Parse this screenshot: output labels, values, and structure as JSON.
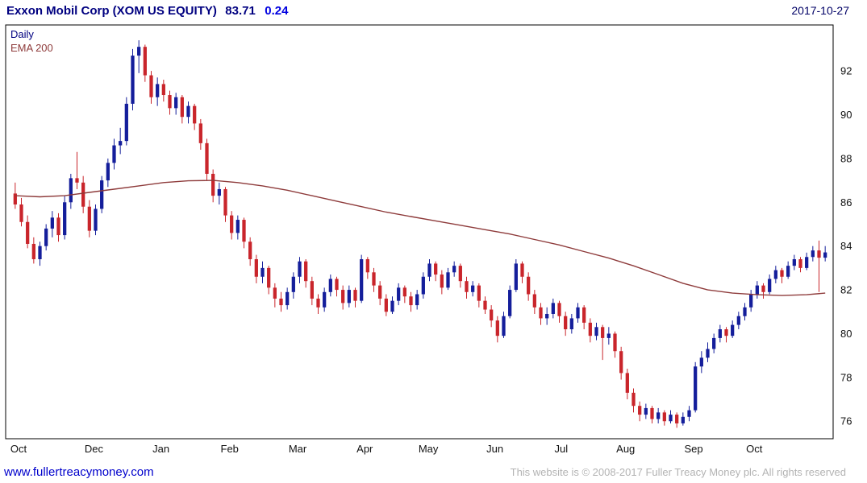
{
  "header": {
    "title": "Exxon Mobil Corp (XOM US EQUITY)",
    "price": "83.71",
    "change": "0.24",
    "date": "2017-10-27"
  },
  "legend": {
    "timeframe": "Daily",
    "overlay": "EMA 200"
  },
  "footer": {
    "website": "www.fullertreacymoney.com",
    "copyright": "This website is © 2008-2017 Fuller Treacy Money plc. All rights reserved"
  },
  "colors": {
    "up": "#141e9b",
    "down": "#c9252b",
    "ema": "#8e3b3b",
    "title": "#000080",
    "change": "#0000e0",
    "legend_daily": "#000080",
    "legend_ema": "#8e3b3b",
    "axis_text": "#111111",
    "border": "#000000",
    "link": "#0000cc",
    "copyright": "#b3b3b3"
  },
  "chart_data": {
    "type": "candlestick",
    "title": "Exxon Mobil Corp (XOM US EQUITY)",
    "timeframe": "Daily",
    "overlay": "EMA 200",
    "last_price": 83.71,
    "change": 0.24,
    "as_of_date": "2017-10-27",
    "ylim": [
      75.2,
      94.1
    ],
    "y_ticks": [
      76,
      78,
      80,
      82,
      84,
      86,
      88,
      90,
      92
    ],
    "x_labels": [
      {
        "label": "Oct",
        "i": 0
      },
      {
        "label": "Dec",
        "i": 12
      },
      {
        "label": "Jan",
        "i": 23
      },
      {
        "label": "Feb",
        "i": 34
      },
      {
        "label": "Mar",
        "i": 45
      },
      {
        "label": "Apr",
        "i": 56
      },
      {
        "label": "May",
        "i": 66
      },
      {
        "label": "Jun",
        "i": 77
      },
      {
        "label": "Jul",
        "i": 88
      },
      {
        "label": "Aug",
        "i": 98
      },
      {
        "label": "Sep",
        "i": 109
      },
      {
        "label": "Oct",
        "i": 119
      }
    ],
    "candles": [
      [
        86.4,
        86.9,
        85.7,
        85.9
      ],
      [
        85.9,
        86.2,
        84.9,
        85.1
      ],
      [
        85.1,
        85.4,
        83.9,
        84.1
      ],
      [
        84.1,
        84.4,
        83.2,
        83.4
      ],
      [
        83.4,
        84.2,
        83.1,
        84.0
      ],
      [
        84.0,
        85.0,
        83.8,
        84.8
      ],
      [
        84.8,
        85.6,
        84.4,
        85.3
      ],
      [
        85.3,
        85.5,
        84.2,
        84.5
      ],
      [
        84.5,
        86.3,
        84.3,
        86.0
      ],
      [
        86.0,
        87.3,
        85.7,
        87.1
      ],
      [
        87.1,
        88.3,
        86.6,
        86.9
      ],
      [
        86.9,
        87.2,
        85.5,
        85.8
      ],
      [
        85.8,
        86.1,
        84.4,
        84.7
      ],
      [
        84.7,
        85.9,
        84.5,
        85.7
      ],
      [
        85.7,
        87.2,
        85.5,
        87.0
      ],
      [
        87.0,
        88.0,
        86.7,
        87.8
      ],
      [
        87.8,
        88.9,
        87.5,
        88.6
      ],
      [
        88.6,
        89.4,
        88.2,
        88.8
      ],
      [
        88.8,
        90.8,
        88.6,
        90.5
      ],
      [
        90.5,
        93.0,
        90.2,
        92.7
      ],
      [
        92.7,
        93.4,
        91.9,
        93.1
      ],
      [
        93.1,
        93.2,
        91.5,
        91.8
      ],
      [
        91.8,
        92.0,
        90.5,
        90.8
      ],
      [
        90.8,
        91.7,
        90.4,
        91.4
      ],
      [
        91.4,
        91.6,
        90.6,
        90.9
      ],
      [
        90.9,
        91.1,
        90.0,
        90.3
      ],
      [
        90.3,
        91.0,
        90.0,
        90.8
      ],
      [
        90.8,
        90.9,
        89.6,
        89.9
      ],
      [
        89.9,
        90.6,
        89.6,
        90.4
      ],
      [
        90.4,
        90.5,
        89.3,
        89.6
      ],
      [
        89.6,
        89.8,
        88.4,
        88.7
      ],
      [
        88.7,
        88.9,
        87.0,
        87.3
      ],
      [
        87.3,
        87.5,
        86.0,
        86.3
      ],
      [
        86.3,
        86.9,
        85.9,
        86.6
      ],
      [
        86.6,
        86.7,
        85.1,
        85.4
      ],
      [
        85.4,
        85.6,
        84.3,
        84.6
      ],
      [
        84.6,
        85.4,
        84.3,
        85.2
      ],
      [
        85.2,
        85.3,
        83.9,
        84.2
      ],
      [
        84.2,
        84.4,
        83.1,
        83.4
      ],
      [
        83.4,
        83.6,
        82.3,
        82.6
      ],
      [
        82.6,
        83.3,
        82.3,
        83.0
      ],
      [
        83.0,
        83.1,
        81.8,
        82.1
      ],
      [
        82.1,
        82.3,
        81.2,
        81.6
      ],
      [
        81.6,
        81.9,
        81.0,
        81.3
      ],
      [
        81.3,
        82.1,
        81.1,
        81.9
      ],
      [
        81.9,
        82.8,
        81.6,
        82.6
      ],
      [
        82.6,
        83.5,
        82.3,
        83.3
      ],
      [
        83.3,
        83.4,
        82.1,
        82.4
      ],
      [
        82.4,
        82.6,
        81.3,
        81.6
      ],
      [
        81.6,
        81.8,
        80.9,
        81.2
      ],
      [
        81.2,
        82.1,
        81.0,
        81.9
      ],
      [
        81.9,
        82.7,
        81.7,
        82.5
      ],
      [
        82.5,
        82.6,
        81.7,
        82.0
      ],
      [
        82.0,
        82.2,
        81.1,
        81.4
      ],
      [
        81.4,
        82.2,
        81.2,
        82.0
      ],
      [
        82.0,
        82.1,
        81.2,
        81.5
      ],
      [
        81.5,
        83.6,
        81.4,
        83.4
      ],
      [
        83.4,
        83.5,
        82.5,
        82.8
      ],
      [
        82.8,
        83.0,
        81.9,
        82.2
      ],
      [
        82.2,
        82.4,
        81.3,
        81.6
      ],
      [
        81.6,
        81.8,
        80.8,
        81.0
      ],
      [
        81.0,
        81.7,
        80.9,
        81.5
      ],
      [
        81.5,
        82.3,
        81.3,
        82.1
      ],
      [
        82.1,
        82.2,
        81.4,
        81.7
      ],
      [
        81.7,
        81.9,
        81.0,
        81.3
      ],
      [
        81.3,
        82.0,
        81.1,
        81.8
      ],
      [
        81.8,
        82.8,
        81.6,
        82.6
      ],
      [
        82.6,
        83.4,
        82.4,
        83.2
      ],
      [
        83.2,
        83.3,
        82.4,
        82.7
      ],
      [
        82.7,
        82.9,
        81.8,
        82.1
      ],
      [
        82.1,
        83.0,
        82.0,
        82.8
      ],
      [
        82.8,
        83.3,
        82.6,
        83.1
      ],
      [
        83.1,
        83.2,
        82.1,
        82.4
      ],
      [
        82.4,
        82.6,
        81.6,
        81.9
      ],
      [
        81.9,
        82.4,
        81.7,
        82.2
      ],
      [
        82.2,
        82.3,
        81.2,
        81.5
      ],
      [
        81.5,
        81.7,
        80.9,
        81.1
      ],
      [
        81.1,
        81.3,
        80.3,
        80.6
      ],
      [
        80.6,
        80.8,
        79.6,
        79.9
      ],
      [
        79.9,
        81.0,
        79.8,
        80.8
      ],
      [
        80.8,
        82.2,
        80.7,
        82.0
      ],
      [
        82.0,
        83.4,
        81.9,
        83.2
      ],
      [
        83.2,
        83.3,
        82.3,
        82.6
      ],
      [
        82.6,
        82.8,
        81.5,
        81.8
      ],
      [
        81.8,
        82.0,
        80.9,
        81.2
      ],
      [
        81.2,
        81.4,
        80.4,
        80.7
      ],
      [
        80.7,
        81.2,
        80.4,
        80.9
      ],
      [
        80.9,
        81.6,
        80.7,
        81.4
      ],
      [
        81.4,
        81.5,
        80.5,
        80.8
      ],
      [
        80.8,
        81.0,
        79.9,
        80.2
      ],
      [
        80.2,
        80.9,
        80.0,
        80.7
      ],
      [
        80.7,
        81.4,
        80.5,
        81.2
      ],
      [
        81.2,
        81.3,
        80.2,
        80.5
      ],
      [
        80.5,
        80.7,
        79.6,
        79.9
      ],
      [
        79.9,
        80.5,
        79.7,
        80.3
      ],
      [
        80.3,
        80.4,
        78.8,
        79.8
      ],
      [
        79.8,
        80.3,
        79.5,
        80.0
      ],
      [
        80.0,
        80.1,
        78.9,
        79.2
      ],
      [
        79.2,
        79.4,
        77.9,
        78.2
      ],
      [
        78.2,
        78.4,
        77.0,
        77.3
      ],
      [
        77.3,
        77.5,
        76.4,
        76.7
      ],
      [
        76.7,
        76.9,
        76.0,
        76.3
      ],
      [
        76.3,
        76.8,
        76.1,
        76.6
      ],
      [
        76.6,
        76.7,
        75.9,
        76.1
      ],
      [
        76.1,
        76.6,
        75.9,
        76.4
      ],
      [
        76.4,
        76.5,
        75.8,
        76.0
      ],
      [
        76.0,
        76.5,
        75.9,
        76.3
      ],
      [
        76.3,
        76.4,
        75.7,
        75.9
      ],
      [
        75.9,
        76.4,
        75.8,
        76.2
      ],
      [
        76.2,
        76.7,
        76.0,
        76.5
      ],
      [
        76.5,
        78.7,
        76.4,
        78.5
      ],
      [
        78.5,
        79.2,
        78.2,
        78.9
      ],
      [
        78.9,
        79.6,
        78.7,
        79.3
      ],
      [
        79.3,
        80.0,
        79.1,
        79.8
      ],
      [
        79.8,
        80.4,
        79.6,
        80.2
      ],
      [
        80.2,
        80.3,
        79.6,
        79.9
      ],
      [
        79.9,
        80.6,
        79.8,
        80.4
      ],
      [
        80.4,
        81.0,
        80.2,
        80.8
      ],
      [
        80.8,
        81.4,
        80.6,
        81.2
      ],
      [
        81.2,
        82.0,
        81.0,
        81.8
      ],
      [
        81.8,
        82.4,
        81.6,
        82.2
      ],
      [
        82.2,
        82.3,
        81.6,
        81.9
      ],
      [
        81.9,
        82.7,
        81.8,
        82.5
      ],
      [
        82.5,
        83.1,
        82.3,
        82.9
      ],
      [
        82.9,
        83.0,
        82.3,
        82.6
      ],
      [
        82.6,
        83.3,
        82.5,
        83.1
      ],
      [
        83.1,
        83.6,
        82.9,
        83.4
      ],
      [
        83.4,
        83.5,
        82.8,
        83.0
      ],
      [
        83.0,
        83.7,
        82.9,
        83.5
      ],
      [
        83.5,
        84.0,
        83.3,
        83.8
      ],
      [
        83.8,
        84.25,
        81.9,
        83.47
      ],
      [
        83.47,
        84.0,
        83.3,
        83.71
      ]
    ],
    "ema": [
      [
        0,
        86.3
      ],
      [
        4,
        86.25
      ],
      [
        8,
        86.3
      ],
      [
        12,
        86.45
      ],
      [
        16,
        86.6
      ],
      [
        20,
        86.75
      ],
      [
        24,
        86.9
      ],
      [
        28,
        86.98
      ],
      [
        32,
        87.0
      ],
      [
        36,
        86.9
      ],
      [
        40,
        86.75
      ],
      [
        44,
        86.55
      ],
      [
        48,
        86.3
      ],
      [
        52,
        86.05
      ],
      [
        56,
        85.8
      ],
      [
        60,
        85.55
      ],
      [
        64,
        85.35
      ],
      [
        68,
        85.15
      ],
      [
        72,
        84.95
      ],
      [
        76,
        84.75
      ],
      [
        80,
        84.55
      ],
      [
        84,
        84.3
      ],
      [
        88,
        84.05
      ],
      [
        92,
        83.75
      ],
      [
        96,
        83.45
      ],
      [
        100,
        83.1
      ],
      [
        104,
        82.7
      ],
      [
        108,
        82.3
      ],
      [
        112,
        82.0
      ],
      [
        116,
        81.85
      ],
      [
        120,
        81.78
      ],
      [
        124,
        81.74
      ],
      [
        128,
        81.78
      ],
      [
        131,
        81.85
      ]
    ]
  }
}
